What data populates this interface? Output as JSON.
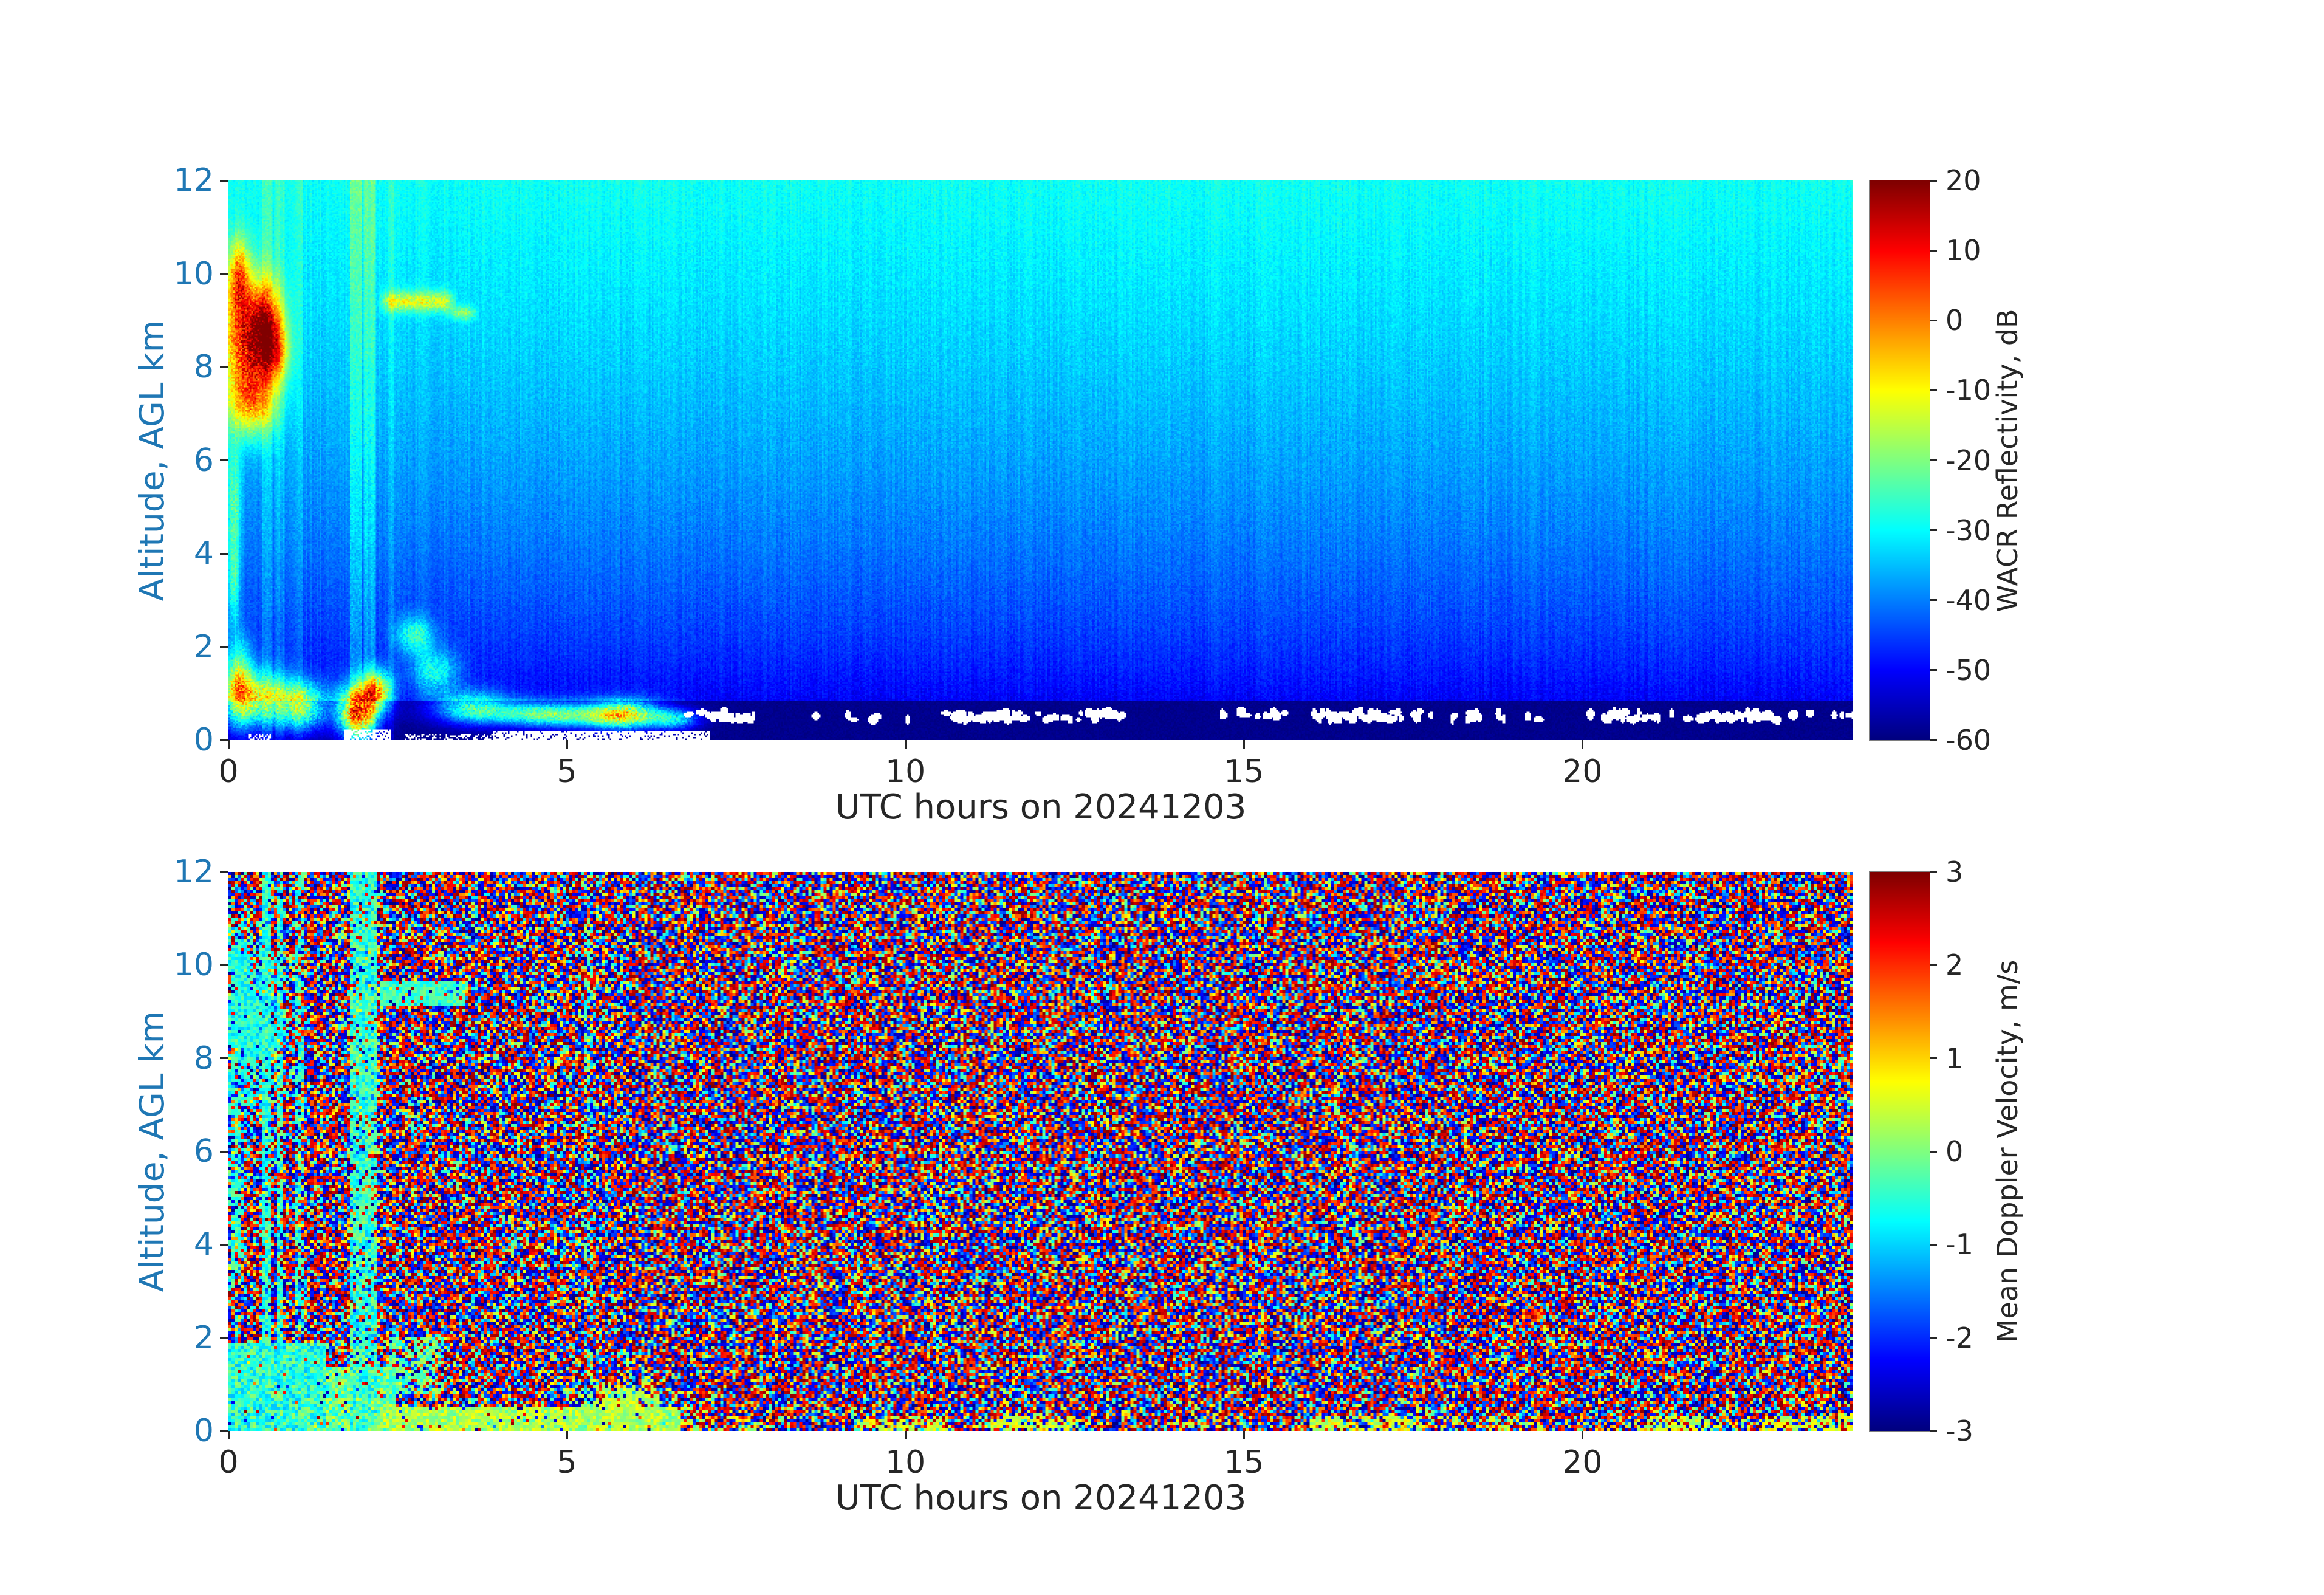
{
  "colors": {
    "background": "#ffffff",
    "axis_text": "#262626",
    "altitude_axis_text": "#1f77b4",
    "colormap_low": "#00007f",
    "colormap_high": "#7f0000"
  },
  "panels": [
    {
      "xlabel": "UTC hours on 20241203",
      "ylabel": "Altitude, AGL km",
      "colorbar_label": "WACR Reflectivity, dB"
    },
    {
      "xlabel": "UTC hours on 20241203",
      "ylabel": "Altitude, AGL km",
      "colorbar_label": "Mean Doppler Velocity, m/s"
    }
  ],
  "chart_data": [
    {
      "type": "heatmap",
      "title": "",
      "xlabel": "UTC hours on 20241203",
      "ylabel": "Altitude, AGL km",
      "value_label": "WACR Reflectivity, dB",
      "xlim": [
        0,
        24
      ],
      "ylim": [
        0,
        12
      ],
      "xticks": [
        0,
        5,
        10,
        15,
        20
      ],
      "yticks": [
        0,
        2,
        4,
        6,
        8,
        10,
        12
      ],
      "colormap": "jet",
      "value_range": [
        -60,
        20
      ],
      "colorbar_ticks": [
        20,
        10,
        0,
        -10,
        -20,
        -30,
        -40,
        -50,
        -60
      ],
      "grid": {
        "cols": 1070,
        "rows": 368
      },
      "description": "W-band cloud radar reflectivity time-height plot for 2024-12-03. Range-dependent noise background (cyan ~-30 dB at 12 km grading to dark blue ~-55 dB near surface, near-black navy below ~0.9 km). Cloud layer 7-10.5 km with yellow/orange core during 0-1.3 UTC, thin cirrus streak near 9.4 km at 2.3-3.6 UTC, lighter full-column calibration stripes near 0.5-2.2 UTC, shallow boundary-layer cloud/drizzle below 2 km from 0-7 UTC with white saturated patches near the surface, and an intermittent white clutter dot line near 0.5 km from ~7-24 UTC.",
      "noise_model": {
        "kind": "range-dependent-noise-floor",
        "top_dB": -29,
        "floor_dB": -60,
        "exponent": 0.45,
        "speckle_dB": 4,
        "near_surface_dark_below_km": 0.85,
        "near_surface_dB": -59
      },
      "features": {
        "columns": [
          [
            0.5,
            0.64,
            5
          ],
          [
            0.7,
            0.82,
            4
          ],
          [
            0.97,
            1.1,
            3
          ],
          [
            1.8,
            1.98,
            7
          ],
          [
            2.0,
            2.18,
            7
          ],
          [
            2.35,
            2.45,
            3
          ]
        ],
        "blobs": [
          [
            0.3,
            8.5,
            0.4,
            1.3,
            40
          ],
          [
            0.55,
            8.9,
            0.25,
            0.9,
            26
          ],
          [
            0.15,
            9.9,
            0.15,
            0.8,
            28
          ],
          [
            0.35,
            7.2,
            0.35,
            0.7,
            22
          ],
          [
            0.08,
            5.0,
            0.1,
            1.5,
            16
          ],
          [
            0.08,
            3.3,
            0.08,
            0.9,
            14
          ],
          [
            0.7,
            8.3,
            0.2,
            0.6,
            18
          ],
          [
            0.45,
            0.85,
            0.5,
            0.6,
            36
          ],
          [
            1.1,
            0.7,
            0.35,
            0.5,
            34
          ],
          [
            1.9,
            0.6,
            0.3,
            0.55,
            56
          ],
          [
            2.2,
            1.05,
            0.22,
            0.45,
            38
          ],
          [
            2.75,
            2.25,
            0.28,
            0.4,
            20
          ],
          [
            3.05,
            1.45,
            0.35,
            0.5,
            20
          ],
          [
            3.6,
            0.7,
            0.5,
            0.35,
            24
          ],
          [
            4.6,
            0.55,
            0.7,
            0.28,
            22
          ],
          [
            5.85,
            0.55,
            0.55,
            0.3,
            42
          ],
          [
            6.6,
            0.45,
            0.35,
            0.22,
            24
          ],
          [
            0.15,
            1.2,
            0.2,
            0.9,
            30
          ],
          [
            4.2,
            0.6,
            1.2,
            0.25,
            12
          ],
          [
            5.3,
            0.5,
            0.8,
            0.25,
            14
          ]
        ],
        "streaks": [
          [
            2.3,
            3.3,
            9.4,
            0.22,
            20
          ],
          [
            3.3,
            3.62,
            9.15,
            0.15,
            14
          ]
        ],
        "white_rects": [
          [
            1.7,
            2.4,
            0.0,
            0.22,
            0.75
          ],
          [
            3.9,
            7.1,
            0.0,
            0.2,
            0.85
          ],
          [
            0.3,
            0.62,
            0.0,
            0.14,
            0.5
          ],
          [
            2.6,
            3.9,
            0.0,
            0.12,
            0.4
          ]
        ],
        "clutter_dots": {
          "t0": 6.8,
          "t1": 24.0,
          "h": 0.52,
          "step": 0.04,
          "prob": 0.5,
          "h_jitter": 0.18
        }
      }
    },
    {
      "type": "heatmap",
      "title": "",
      "xlabel": "UTC hours on 20241203",
      "ylabel": "Altitude, AGL km",
      "value_label": "Mean Doppler Velocity, m/s",
      "xlim": [
        0,
        24
      ],
      "ylim": [
        0,
        12
      ],
      "xticks": [
        0,
        5,
        10,
        15,
        20
      ],
      "yticks": [
        0,
        2,
        4,
        6,
        8,
        10,
        12
      ],
      "colormap": "jet",
      "value_range": [
        -3,
        3
      ],
      "colorbar_ticks": [
        3,
        2,
        1,
        0,
        -1,
        -2,
        -3
      ],
      "grid": {
        "cols": 535,
        "rows": 184
      },
      "description": "Mean Doppler velocity time-height plot for 2024-12-03. Uncorrelated multicolor speckle noise (-3 to 3 m/s) everywhere except coherent cyan/green regions matching the clouds: 7-10.5 km during 0-1.3 UTC, streak near 9.4 km at 2.3-3.5 UTC, lighter full-column stripes near 0.5-2.2 UTC, low-level green/yellow band below ~0.6 km from 2-6.7 UTC, and intermittent yellow-green clutter clusters near the surface afterwards.",
      "noise_model": {
        "kind": "uniform-random-speckle",
        "range": [
          -3,
          3
        ],
        "extreme_bias": 0.45
      },
      "features": {
        "regions": [
          {
            "shape": "rect",
            "t0": 0.0,
            "t1": 1.45,
            "h0": 0.0,
            "h1": 1.9,
            "v": -0.5,
            "spread": 1.4,
            "prob": 0.95
          },
          {
            "shape": "rect",
            "t0": 1.45,
            "t1": 2.45,
            "h0": 0.0,
            "h1": 1.35,
            "v": -0.1,
            "spread": 1.4,
            "prob": 0.9
          },
          {
            "shape": "rect",
            "t0": 2.0,
            "t1": 6.7,
            "h0": 0.0,
            "h1": 0.55,
            "v": 0.25,
            "spread": 1.0,
            "prob": 0.92
          },
          {
            "shape": "blob",
            "t": 5.85,
            "h": 0.6,
            "rt": 0.6,
            "rh": 0.35,
            "v": 0.35,
            "spread": 0.8,
            "prob": 1
          },
          {
            "shape": "rect",
            "t0": 0.5,
            "t1": 0.64,
            "h0": 0,
            "h1": 12,
            "v": -0.5,
            "spread": 1.2,
            "prob": 0.8
          },
          {
            "shape": "rect",
            "t0": 0.7,
            "t1": 0.82,
            "h0": 0,
            "h1": 12,
            "v": -0.5,
            "spread": 1.2,
            "prob": 0.65
          },
          {
            "shape": "rect",
            "t0": 0.97,
            "t1": 1.1,
            "h0": 0,
            "h1": 12,
            "v": -0.5,
            "spread": 1.1,
            "prob": 0.5
          },
          {
            "shape": "rect",
            "t0": 1.8,
            "t1": 2.18,
            "h0": 0,
            "h1": 12,
            "v": -0.45,
            "spread": 1.3,
            "prob": 0.8
          },
          {
            "shape": "rect",
            "t0": 5.25,
            "t1": 5.4,
            "h0": 0,
            "h1": 12,
            "v": -0.4,
            "spread": 1.4,
            "prob": 0.3
          },
          {
            "shape": "blob",
            "t": 0.3,
            "h": 8.5,
            "rt": 0.45,
            "rh": 1.5,
            "v": -0.6,
            "spread": 1.0,
            "prob": 1
          },
          {
            "shape": "blob",
            "t": 0.15,
            "h": 9.9,
            "rt": 0.18,
            "rh": 0.9,
            "v": -0.6,
            "spread": 0.9,
            "prob": 1
          },
          {
            "shape": "blob",
            "t": 0.1,
            "h": 4.8,
            "rt": 0.12,
            "rh": 1.6,
            "v": -0.5,
            "spread": 1.0,
            "prob": 0.9
          },
          {
            "shape": "rect",
            "t0": 2.25,
            "t1": 3.5,
            "h0": 9.1,
            "h1": 9.65,
            "v": -0.4,
            "spread": 0.9,
            "prob": 0.85
          },
          {
            "shape": "rect",
            "t0": 2.4,
            "t1": 3.2,
            "h0": 0.8,
            "h1": 2.0,
            "v": -0.2,
            "spread": 1.0,
            "prob": 0.5
          },
          {
            "shape": "rect",
            "t0": 6.7,
            "t1": 24.0,
            "h0": 0.0,
            "h1": 0.3,
            "v": 0.45,
            "spread": 1.0,
            "prob": 0.32,
            "clustered": true
          }
        ]
      }
    }
  ]
}
